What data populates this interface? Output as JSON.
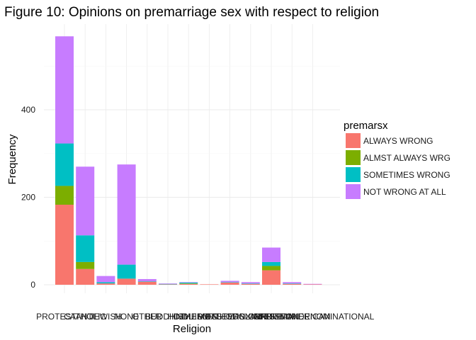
{
  "chart_data": {
    "type": "bar",
    "stacked": true,
    "title": "Figure 10: Opinions on premarriage sex with respect to religion",
    "xlabel": "Religion",
    "ylabel": "Frequency",
    "ylim": [
      0,
      575
    ],
    "yticks": [
      0,
      200,
      400
    ],
    "grid": true,
    "legend_position": "right",
    "legend_title": "premarsx",
    "categories": [
      "PROTESTANT",
      "CATHOLIC",
      "JEWISH",
      "NONE",
      "OTHER",
      "BUDDHISM",
      "HINDUISM",
      "OTHER EASTERN",
      "MOSLEM/ISLAM",
      "ORTHODOX-CHRISTIAN",
      "CHRISTIAN",
      "NATIVE AMERICAN",
      "INTER-NONDENOMINATIONAL"
    ],
    "series": [
      {
        "name": "ALWAYS WRONG",
        "color": "#F8766D",
        "values": [
          183,
          36,
          3,
          14,
          7,
          1,
          2,
          1,
          5,
          2,
          33,
          2,
          1
        ]
      },
      {
        "name": "ALMST ALWAYS WRG",
        "color": "#7CAE00",
        "values": [
          43,
          16,
          0,
          0,
          0,
          0,
          1,
          0,
          0,
          0,
          10,
          0,
          0
        ]
      },
      {
        "name": "SOMETIMES WRONG",
        "color": "#00BFC4",
        "values": [
          97,
          61,
          3,
          32,
          1,
          1,
          2,
          0,
          1,
          1,
          9,
          1,
          0
        ]
      },
      {
        "name": "NOT WRONG AT ALL",
        "color": "#C77CFF",
        "values": [
          245,
          157,
          14,
          229,
          5,
          1,
          1,
          0,
          3,
          3,
          33,
          3,
          1
        ]
      }
    ]
  }
}
